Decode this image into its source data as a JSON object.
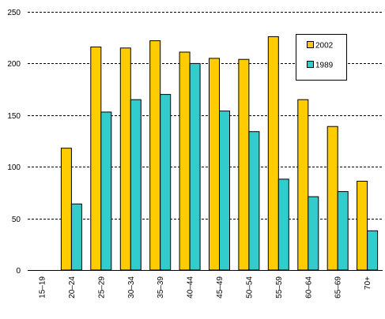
{
  "chart_data": {
    "type": "bar",
    "title": "",
    "xlabel": "",
    "ylabel": "",
    "categories": [
      "15–19",
      "20–24",
      "25–29",
      "30–34",
      "35–39",
      "40–44",
      "45–49",
      "50–54",
      "55–59",
      "60–64",
      "65–69",
      "70+"
    ],
    "series": [
      {
        "name": "2002",
        "color": "#FFCC00",
        "values": [
          0,
          118,
          216,
          215,
          222,
          211,
          205,
          204,
          226,
          165,
          139,
          86
        ]
      },
      {
        "name": "1989",
        "color": "#33CCCC",
        "values": [
          0,
          64,
          153,
          165,
          170,
          200,
          154,
          134,
          88,
          71,
          76,
          38
        ]
      }
    ],
    "ylim": [
      0,
      250
    ],
    "yticks": [
      0,
      50,
      100,
      150,
      200,
      250
    ],
    "grid": "horizontal-dashed",
    "legend_position": "top-right"
  }
}
